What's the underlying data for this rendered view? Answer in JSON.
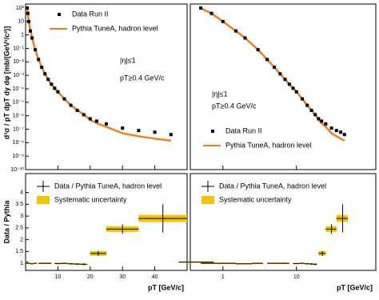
{
  "chart_data": [
    {
      "type": "scatter",
      "xscale": "linear",
      "yscale": "log",
      "y_label": "d³σ / pT dpT dy dφ [mb/(GeV²/c²)]",
      "x_label": "pT [GeV/c]",
      "xlim": [
        0,
        50
      ],
      "xticks": [
        10,
        20,
        30,
        40
      ],
      "ylim": [
        1e-10,
        200
      ],
      "yticks": [
        {
          "value": 100,
          "label": "10²"
        },
        10,
        1,
        {
          "value": 0.1,
          "label": "10⁻¹"
        },
        {
          "value": 0.01,
          "label": "10⁻²"
        },
        {
          "value": 0.001,
          "label": "10⁻³"
        },
        {
          "value": 0.0001,
          "label": "10⁻⁴"
        },
        {
          "value": 1e-05,
          "label": "10⁻⁵"
        },
        {
          "value": 1e-06,
          "label": "10⁻⁶"
        },
        {
          "value": 1e-07,
          "label": "10⁻⁷"
        },
        {
          "value": 1e-08,
          "label": "10⁻⁸"
        },
        {
          "value": 1e-09,
          "label": "10⁻⁹"
        },
        {
          "value": 1e-10,
          "label": "10⁻¹⁰"
        }
      ],
      "legend": "upper right",
      "annotations": [
        "|η|≤1",
        "pT≥0.4 GeV/c"
      ],
      "series": [
        {
          "name": "Data Run II",
          "color": "#000000",
          "x": [
            0.5,
            0.7,
            1,
            1.5,
            2,
            3,
            4,
            5,
            6,
            7,
            8,
            9,
            10,
            12,
            14,
            16,
            18,
            20,
            22,
            25,
            30,
            35,
            40,
            45
          ],
          "values": [
            100,
            40,
            10,
            2,
            0.6,
            0.08,
            0.015,
            0.004,
            0.0013,
            0.0005,
            0.00022,
            0.00011,
            6e-05,
            1.8e-05,
            6e-06,
            2.5e-06,
            1.2e-06,
            6e-07,
            4e-07,
            2.5e-07,
            1.2e-07,
            8e-08,
            6e-08,
            4e-08
          ]
        },
        {
          "name": "Pythia TuneA, hadron level",
          "color": "#f07f20",
          "x": [
            0.5,
            0.7,
            1,
            1.5,
            2,
            3,
            4,
            5,
            6,
            7,
            8,
            9,
            10,
            12,
            14,
            16,
            18,
            20,
            22,
            25,
            30,
            35,
            40,
            45
          ],
          "values": [
            95,
            40,
            10,
            2,
            0.6,
            0.08,
            0.015,
            0.004,
            0.0013,
            0.0005,
            0.00022,
            0.00011,
            6e-05,
            1.8e-05,
            6.1e-06,
            2.6e-06,
            1.25e-06,
            5e-07,
            2.8e-07,
            1.5e-07,
            5e-08,
            3e-08,
            2e-08,
            1.4e-08
          ]
        }
      ],
      "ratio": {
        "y_label": "Data / Pythia",
        "ylim": [
          0.7,
          4.8
        ],
        "yticks": [
          1,
          1.5,
          2,
          2.5,
          3,
          3.5,
          4
        ],
        "series": {
          "name": "Data / Pythia TuneA, hadron level",
          "color": "#000000",
          "x": [
            0.5,
            1,
            2,
            3,
            5,
            7,
            10,
            12,
            14,
            16,
            18,
            22.5,
            30,
            42.5
          ],
          "values": [
            1.05,
            1.0,
            0.98,
            1.0,
            1.0,
            1.0,
            0.99,
            1.0,
            0.98,
            0.97,
            0.96,
            1.42,
            2.45,
            2.9
          ],
          "xerr": [
            0.25,
            0.5,
            0.5,
            0.5,
            1,
            1,
            1,
            1,
            1,
            1,
            1,
            2.5,
            5,
            7.5
          ],
          "yerr": [
            0.01,
            0.01,
            0.01,
            0.01,
            0.01,
            0.02,
            0.02,
            0.02,
            0.03,
            0.03,
            0.04,
            0.1,
            0.2,
            0.6
          ]
        },
        "band": {
          "name": "Systematic uncertainty",
          "color": "#f5c400",
          "values": [
            0.03,
            0.03,
            0.03,
            0.03,
            0.03,
            0.03,
            0.03,
            0.03,
            0.03,
            0.03,
            0.03,
            0.1,
            0.12,
            0.15
          ]
        }
      }
    },
    {
      "type": "scatter",
      "xscale": "log",
      "yscale": "log",
      "x_label": "pT [GeV/c]",
      "xlim": [
        0.36,
        120
      ],
      "xticks": [
        1,
        10
      ],
      "ylim": [
        1e-10,
        200
      ],
      "legend": "lower left",
      "annotations": [
        "|η|≤1",
        "pT≥0.4 GeV/c"
      ],
      "series": [
        {
          "name": "Data Run II",
          "color": "#000000",
          "x": [
            0.5,
            0.7,
            1,
            1.5,
            2,
            3,
            4,
            5,
            6,
            7,
            8,
            9,
            10,
            12,
            14,
            16,
            18,
            20,
            22,
            25,
            30,
            35,
            40,
            45
          ],
          "values": [
            100,
            40,
            10,
            2,
            0.6,
            0.08,
            0.015,
            0.004,
            0.0013,
            0.0005,
            0.00022,
            0.00011,
            6e-05,
            1.8e-05,
            6e-06,
            2.5e-06,
            1.2e-06,
            6e-07,
            4e-07,
            2.5e-07,
            1.2e-07,
            8e-08,
            6e-08,
            4e-08
          ]
        },
        {
          "name": "Pythia TuneA, hadron level",
          "color": "#f07f20",
          "x": [
            0.5,
            0.7,
            1,
            1.5,
            2,
            3,
            4,
            5,
            6,
            7,
            8,
            9,
            10,
            12,
            14,
            16,
            18,
            20,
            22,
            25,
            30,
            35,
            40,
            45
          ],
          "values": [
            95,
            40,
            10,
            2,
            0.6,
            0.08,
            0.015,
            0.004,
            0.0013,
            0.0005,
            0.00022,
            0.00011,
            6e-05,
            1.8e-05,
            6.1e-06,
            2.6e-06,
            1.25e-06,
            5e-07,
            2.8e-07,
            1.5e-07,
            5e-08,
            3e-08,
            2e-08,
            1.4e-08
          ]
        }
      ],
      "ratio": {
        "ylim": [
          0.7,
          4.8
        ],
        "series": {
          "name": "Data / Pythia TuneA, hadron level",
          "color": "#000000",
          "x": [
            0.5,
            1,
            2,
            3,
            5,
            7,
            10,
            12,
            14,
            16,
            18,
            22.5,
            30,
            42.5
          ],
          "values": [
            1.05,
            1.0,
            0.98,
            1.0,
            1.0,
            1.0,
            0.99,
            1.0,
            0.98,
            0.97,
            0.96,
            1.42,
            2.45,
            2.9
          ],
          "xerr": [
            0.25,
            0.5,
            0.5,
            0.5,
            1,
            1,
            1,
            1,
            1,
            1,
            1,
            2.5,
            5,
            7.5
          ],
          "yerr": [
            0.01,
            0.01,
            0.01,
            0.01,
            0.01,
            0.02,
            0.02,
            0.02,
            0.03,
            0.03,
            0.04,
            0.1,
            0.2,
            0.6
          ]
        },
        "band": {
          "name": "Systematic uncertainty",
          "color": "#f5c400",
          "values": [
            0.03,
            0.03,
            0.03,
            0.03,
            0.03,
            0.03,
            0.03,
            0.03,
            0.03,
            0.03,
            0.03,
            0.1,
            0.12,
            0.15
          ]
        }
      }
    }
  ]
}
